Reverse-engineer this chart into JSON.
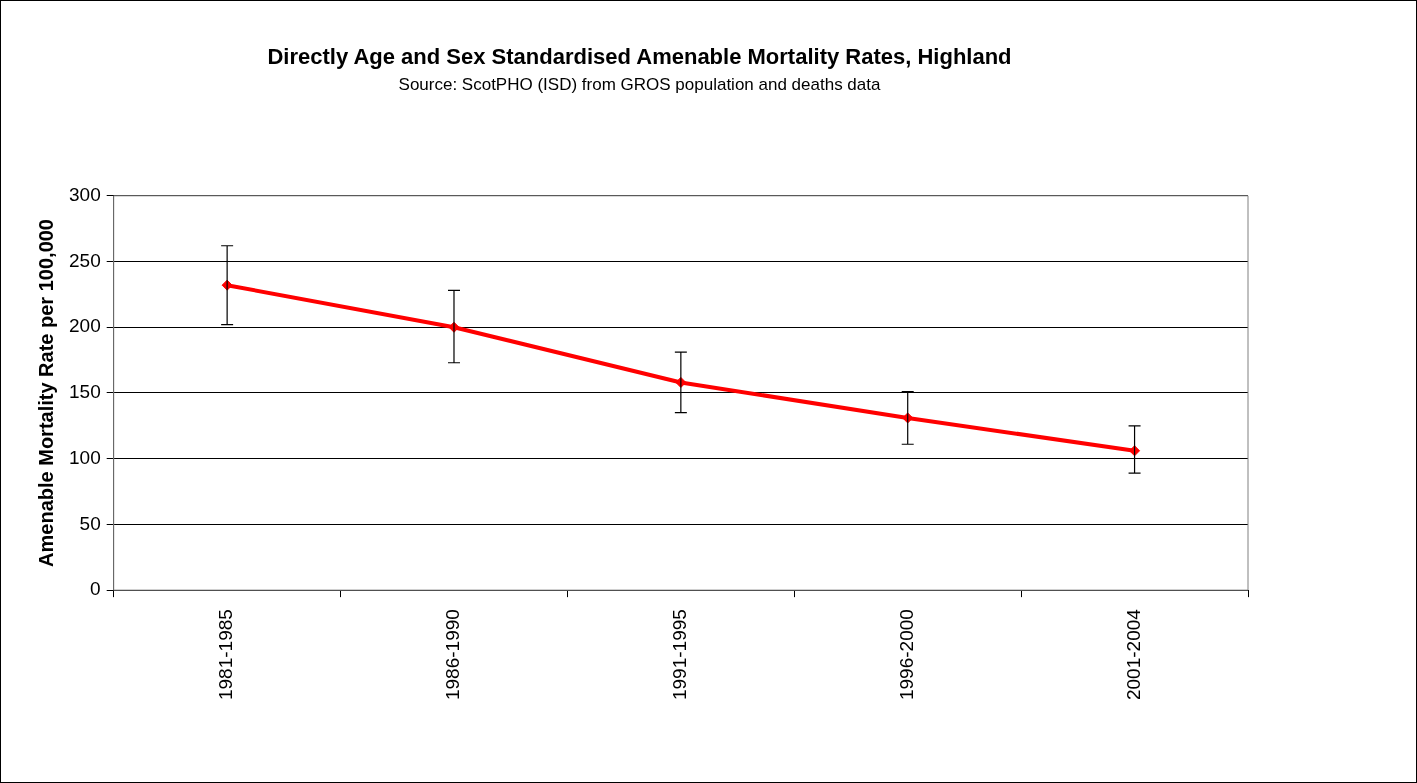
{
  "chart_data": {
    "type": "line",
    "title": "Directly Age and Sex Standardised Amenable Mortality Rates, Highland",
    "subtitle": "Source: ScotPHO (ISD) from GROS population and deaths data",
    "ylabel": "Amenable Mortality Rate per 100,000",
    "categories": [
      "1981-1985",
      "1986-1990",
      "1991-1995",
      "1996-2000",
      "2001-2004"
    ],
    "series": [
      {
        "color": "#ff0000",
        "values": [
          232,
          200,
          158,
          131,
          106
        ],
        "errors": [
          [
            202,
            262
          ],
          [
            173,
            228
          ],
          [
            135,
            181
          ],
          [
            111,
            151
          ],
          [
            89,
            125
          ]
        ]
      }
    ],
    "ylim": [
      0,
      300
    ],
    "yticks": [
      0,
      50,
      100,
      150,
      200,
      250,
      300
    ],
    "grid": "y",
    "legend": false,
    "marker": "diamond",
    "line_style": "solid"
  }
}
